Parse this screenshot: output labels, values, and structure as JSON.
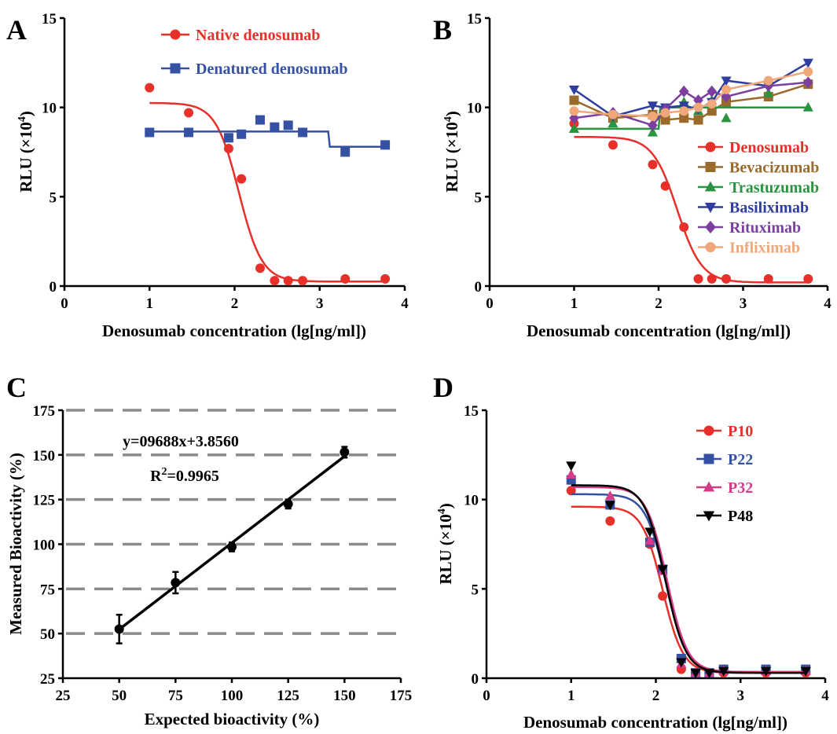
{
  "chart_data": [
    {
      "panel": "A",
      "type": "scatter",
      "xlabel": "Denosumab concentration (lg[ng/ml])",
      "ylabel": "RLU (×10",
      "ylabel_sup": "4",
      "ylabel_close": ")",
      "xlim": [
        0,
        4
      ],
      "ylim": [
        0,
        15
      ],
      "xticks": [
        0,
        1,
        2,
        3,
        4
      ],
      "yticks": [
        0,
        5,
        10,
        15
      ],
      "grid": false,
      "legend_position": "top-right",
      "series": [
        {
          "name": "Native denosumab",
          "color": "#e8302b",
          "marker": "circle",
          "x": [
            1.0,
            1.46,
            1.93,
            2.08,
            2.3,
            2.47,
            2.63,
            2.8,
            3.3,
            3.77
          ],
          "y": [
            11.1,
            9.7,
            7.7,
            6.0,
            1.0,
            0.3,
            0.3,
            0.3,
            0.4,
            0.4
          ],
          "fit": {
            "kind": "logistic",
            "top": 10.25,
            "bottom": 0.25,
            "ec50": 2.05,
            "slope": 3.2
          }
        },
        {
          "name": "Denatured denosumab",
          "color": "#3551a4",
          "marker": "square",
          "x": [
            1.0,
            1.46,
            1.93,
            2.08,
            2.3,
            2.47,
            2.63,
            2.8,
            3.3,
            3.77
          ],
          "y": [
            8.6,
            8.6,
            8.3,
            8.5,
            9.3,
            8.9,
            9.0,
            8.6,
            7.5,
            7.9
          ],
          "fit": {
            "kind": "step",
            "y1": 8.65,
            "y2": 7.8,
            "xstep": 3.1
          }
        }
      ]
    },
    {
      "panel": "B",
      "type": "scatter",
      "xlabel": "Denosumab concentration (lg[ng/ml])",
      "ylabel": "RLU (×10",
      "ylabel_sup": "4",
      "ylabel_close": ")",
      "xlim": [
        0,
        4
      ],
      "ylim": [
        0,
        15
      ],
      "xticks": [
        0,
        1,
        2,
        3,
        4
      ],
      "yticks": [
        0,
        5,
        10,
        15
      ],
      "grid": false,
      "legend_position": "center-right",
      "series": [
        {
          "name": "Denosumab",
          "color": "#e8302b",
          "marker": "circle",
          "x": [
            1.0,
            1.46,
            1.93,
            2.08,
            2.3,
            2.47,
            2.63,
            2.8,
            3.3,
            3.77
          ],
          "y": [
            9.1,
            7.9,
            6.8,
            5.6,
            3.3,
            0.4,
            0.4,
            0.4,
            0.4,
            0.4
          ],
          "fit": {
            "kind": "logistic",
            "top": 8.35,
            "bottom": 0.2,
            "ec50": 2.22,
            "slope": 3.0
          }
        },
        {
          "name": "Bevacizumab",
          "color": "#9a6a2c",
          "marker": "square",
          "x": [
            1.0,
            1.46,
            1.93,
            2.08,
            2.3,
            2.47,
            2.63,
            2.8,
            3.3,
            3.77
          ],
          "y": [
            10.4,
            9.4,
            9.6,
            9.3,
            9.4,
            9.3,
            9.8,
            10.3,
            10.6,
            11.3
          ],
          "fit": {
            "kind": "line"
          }
        },
        {
          "name": "Trastuzumab",
          "color": "#2a9440",
          "marker": "triangle-up",
          "x": [
            1.0,
            1.46,
            1.93,
            2.08,
            2.3,
            2.47,
            2.63,
            2.8,
            3.3,
            3.77
          ],
          "y": [
            8.8,
            9.1,
            8.6,
            9.9,
            10.3,
            9.8,
            10.4,
            9.4,
            10.8,
            10.0
          ],
          "fit": {
            "kind": "step",
            "y1": 8.8,
            "y2": 10.0,
            "xstep": 2.0
          }
        },
        {
          "name": "Basiliximab",
          "color": "#2e3d9e",
          "marker": "triangle-down",
          "x": [
            1.0,
            1.46,
            1.93,
            2.08,
            2.3,
            2.47,
            2.63,
            2.8,
            3.3,
            3.77
          ],
          "y": [
            11.0,
            9.5,
            10.1,
            10.0,
            10.1,
            9.9,
            10.3,
            11.5,
            11.2,
            12.5
          ],
          "fit": {
            "kind": "line"
          }
        },
        {
          "name": "Rituximab",
          "color": "#7b3fa0",
          "marker": "diamond",
          "x": [
            1.0,
            1.46,
            1.93,
            2.08,
            2.3,
            2.47,
            2.63,
            2.8,
            3.3,
            3.77
          ],
          "y": [
            9.4,
            9.7,
            9.0,
            9.9,
            10.9,
            10.4,
            10.9,
            10.6,
            11.2,
            11.4
          ],
          "fit": {
            "kind": "line"
          }
        },
        {
          "name": "Infliximab",
          "color": "#f0a87a",
          "marker": "circle",
          "x": [
            1.0,
            1.46,
            1.93,
            2.08,
            2.3,
            2.47,
            2.63,
            2.8,
            3.3,
            3.77
          ],
          "y": [
            9.8,
            9.6,
            9.5,
            9.7,
            9.8,
            10.0,
            10.2,
            11.0,
            11.5,
            12.0
          ],
          "fit": {
            "kind": "line"
          }
        }
      ]
    },
    {
      "panel": "C",
      "type": "scatter",
      "xlabel": "Expected bioactivity (%)",
      "ylabel": "Measured Bioactivity (%)",
      "xlim": [
        25,
        175
      ],
      "ylim": [
        25,
        175
      ],
      "xticks": [
        25,
        50,
        75,
        100,
        125,
        150,
        175
      ],
      "yticks": [
        25,
        50,
        75,
        100,
        125,
        150,
        175
      ],
      "grid": true,
      "equation": "y=09688x+3.8560",
      "r2_base": "R",
      "r2_sup": "2",
      "r2_value": "=0.9965",
      "series": [
        {
          "color": "#000000",
          "marker": "circle",
          "x": [
            50,
            75,
            100,
            125,
            150
          ],
          "y": [
            52.5,
            78.5,
            98.5,
            122.5,
            151.5
          ],
          "err": [
            8.0,
            6.0,
            2.5,
            2.5,
            3.0
          ],
          "fit": {
            "kind": "linear",
            "slope": 0.9688,
            "intercept": 3.856
          }
        }
      ]
    },
    {
      "panel": "D",
      "type": "scatter",
      "xlabel": "Denosumab concentration (lg[ng/ml])",
      "ylabel": "RLU (×10",
      "ylabel_sup": "4",
      "ylabel_close": ")",
      "xlim": [
        0,
        4
      ],
      "ylim": [
        0,
        15
      ],
      "xticks": [
        0,
        1,
        2,
        3,
        4
      ],
      "yticks": [
        0,
        5,
        10,
        15
      ],
      "grid": false,
      "legend_position": "top-right",
      "series": [
        {
          "name": "P10",
          "color": "#e8302b",
          "marker": "circle",
          "x": [
            1.0,
            1.46,
            1.93,
            2.08,
            2.3,
            2.47,
            2.63,
            2.8,
            3.3,
            3.77
          ],
          "y": [
            10.5,
            8.8,
            7.5,
            4.6,
            0.5,
            0.3,
            0.3,
            0.3,
            0.3,
            0.3
          ],
          "fit": {
            "kind": "logistic",
            "top": 9.6,
            "bottom": 0.3,
            "ec50": 2.08,
            "slope": 3.6
          }
        },
        {
          "name": "P22",
          "color": "#3551a4",
          "marker": "square",
          "x": [
            1.0,
            1.46,
            1.93,
            2.08,
            2.3,
            2.47,
            2.63,
            2.8,
            3.3,
            3.77
          ],
          "y": [
            11.1,
            9.7,
            7.6,
            6.1,
            1.1,
            0.3,
            0.3,
            0.5,
            0.5,
            0.5
          ],
          "fit": {
            "kind": "logistic",
            "top": 10.3,
            "bottom": 0.35,
            "ec50": 2.12,
            "slope": 3.6
          }
        },
        {
          "name": "P32",
          "color": "#d43c87",
          "marker": "triangle-up",
          "x": [
            1.0,
            1.46,
            1.93,
            2.08,
            2.3,
            2.47,
            2.63,
            2.8,
            3.3,
            3.77
          ],
          "y": [
            11.4,
            10.2,
            7.7,
            6.0,
            0.8,
            0.3,
            0.3,
            0.4,
            0.4,
            0.4
          ],
          "fit": {
            "kind": "logistic",
            "top": 10.7,
            "bottom": 0.35,
            "ec50": 2.13,
            "slope": 3.6
          }
        },
        {
          "name": "P48",
          "color": "#000000",
          "marker": "triangle-down",
          "x": [
            1.0,
            1.46,
            1.93,
            2.08,
            2.3,
            2.47,
            2.63,
            2.8,
            3.3,
            3.77
          ],
          "y": [
            11.9,
            9.7,
            8.2,
            6.1,
            0.9,
            0.3,
            0.3,
            0.4,
            0.4,
            0.4
          ],
          "fit": {
            "kind": "logistic",
            "top": 10.8,
            "bottom": 0.3,
            "ec50": 2.11,
            "slope": 3.6
          }
        }
      ]
    }
  ]
}
